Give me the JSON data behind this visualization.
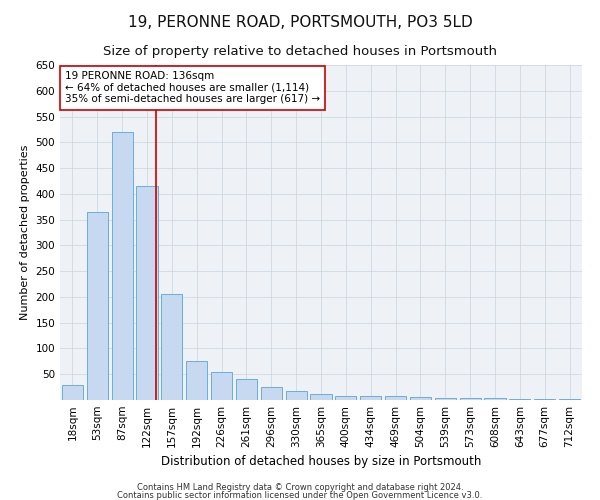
{
  "title": "19, PERONNE ROAD, PORTSMOUTH, PO3 5LD",
  "subtitle": "Size of property relative to detached houses in Portsmouth",
  "xlabel": "Distribution of detached houses by size in Portsmouth",
  "ylabel": "Number of detached properties",
  "categories": [
    "18sqm",
    "53sqm",
    "87sqm",
    "122sqm",
    "157sqm",
    "192sqm",
    "226sqm",
    "261sqm",
    "296sqm",
    "330sqm",
    "365sqm",
    "400sqm",
    "434sqm",
    "469sqm",
    "504sqm",
    "539sqm",
    "573sqm",
    "608sqm",
    "643sqm",
    "677sqm",
    "712sqm"
  ],
  "values": [
    30,
    365,
    520,
    415,
    205,
    75,
    55,
    40,
    25,
    18,
    12,
    7,
    7,
    7,
    5,
    4,
    4,
    3,
    2,
    1,
    2
  ],
  "bar_color": "#c6d9f0",
  "bar_edge_color": "#6aaed6",
  "red_line_x": 3.35,
  "annotation_text": "19 PERONNE ROAD: 136sqm\n← 64% of detached houses are smaller (1,114)\n35% of semi-detached houses are larger (617) →",
  "annotation_box_color": "#ffffff",
  "annotation_box_edge": "#cc0000",
  "ylim": [
    0,
    650
  ],
  "yticks": [
    0,
    50,
    100,
    150,
    200,
    250,
    300,
    350,
    400,
    450,
    500,
    550,
    600,
    650
  ],
  "footnote1": "Contains HM Land Registry data © Crown copyright and database right 2024.",
  "footnote2": "Contains public sector information licensed under the Open Government Licence v3.0.",
  "plot_bg_color": "#eef2f7",
  "title_fontsize": 11,
  "subtitle_fontsize": 9.5,
  "xlabel_fontsize": 8.5,
  "ylabel_fontsize": 8,
  "tick_fontsize": 7.5,
  "annotation_fontsize": 7.5,
  "footnote_fontsize": 6
}
